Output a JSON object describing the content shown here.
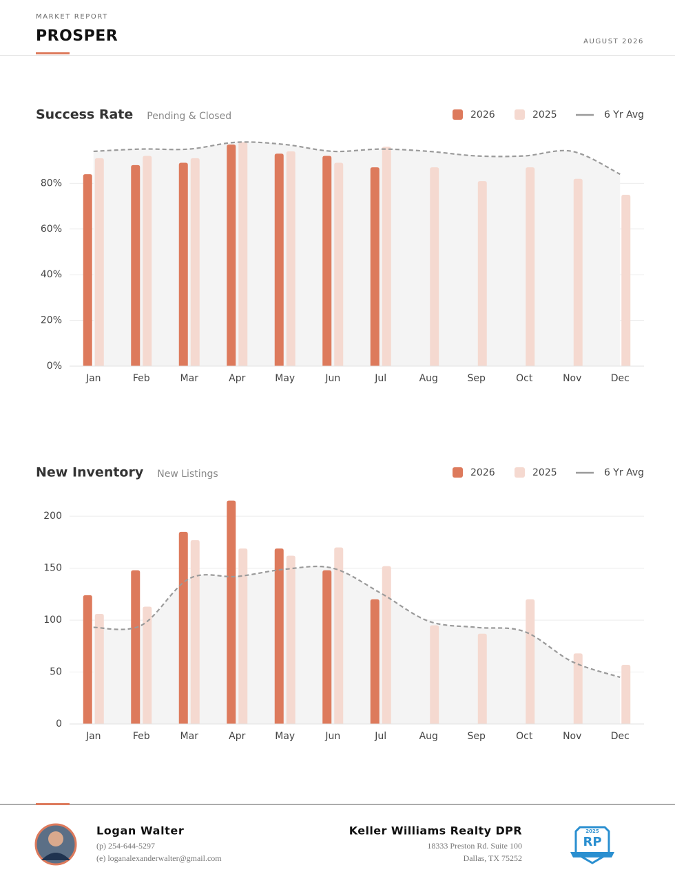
{
  "header": {
    "kicker": "MARKET REPORT",
    "title": "PROSPER",
    "date": "AUGUST 2026"
  },
  "chart_data": [
    {
      "type": "bar",
      "title": "Success Rate",
      "subtitle": "Pending & Closed",
      "categories": [
        "Jan",
        "Feb",
        "Mar",
        "Apr",
        "May",
        "Jun",
        "Jul",
        "Aug",
        "Sep",
        "Oct",
        "Nov",
        "Dec"
      ],
      "series": [
        {
          "name": "2026",
          "color": "#dd7a5c",
          "values": [
            84,
            88,
            89,
            97,
            93,
            92,
            87,
            null,
            null,
            null,
            null,
            null
          ]
        },
        {
          "name": "2025",
          "color": "#f5d9d0",
          "values": [
            91,
            92,
            91,
            98,
            94,
            89,
            96,
            87,
            81,
            87,
            82,
            75
          ]
        },
        {
          "name": "6 Yr Avg",
          "color": "#9a9a9a",
          "type": "line",
          "values": [
            94,
            95,
            95,
            98,
            97,
            94,
            95,
            94,
            92,
            92,
            94,
            84
          ]
        }
      ],
      "ylim": [
        0,
        100
      ],
      "yticks": [
        {
          "value": 0,
          "label": "0%"
        },
        {
          "value": 20,
          "label": "20%"
        },
        {
          "value": 40,
          "label": "40%"
        },
        {
          "value": 60,
          "label": "60%"
        },
        {
          "value": 80,
          "label": "80%"
        }
      ],
      "grid": true
    },
    {
      "type": "bar",
      "title": "New Inventory",
      "subtitle": "New Listings",
      "categories": [
        "Jan",
        "Feb",
        "Mar",
        "Apr",
        "May",
        "Jun",
        "Jul",
        "Aug",
        "Sep",
        "Oct",
        "Nov",
        "Dec"
      ],
      "series": [
        {
          "name": "2026",
          "color": "#dd7a5c",
          "values": [
            124,
            148,
            185,
            215,
            169,
            148,
            120,
            null,
            null,
            null,
            null,
            null
          ]
        },
        {
          "name": "2025",
          "color": "#f5d9d0",
          "values": [
            106,
            113,
            177,
            169,
            162,
            170,
            152,
            95,
            87,
            120,
            68,
            57
          ]
        },
        {
          "name": "6 Yr Avg",
          "color": "#9a9a9a",
          "type": "line",
          "values": [
            93,
            95,
            140,
            142,
            149,
            150,
            126,
            99,
            93,
            89,
            60,
            45
          ]
        }
      ],
      "ylim": [
        0,
        220
      ],
      "yticks": [
        0,
        50,
        100,
        150,
        200
      ],
      "grid": true
    }
  ],
  "footer": {
    "agent": {
      "name": "Logan Walter",
      "phone": "(p) 254-644-5297",
      "email": "(e) loganalexanderwalter@gmail.com"
    },
    "company": {
      "name": "Keller Williams Realty DPR",
      "address1": "18333 Preston Rd. Suite 100",
      "address2": "Dallas, TX 75252"
    },
    "badge": {
      "year": "2025",
      "initials": "RP"
    }
  }
}
